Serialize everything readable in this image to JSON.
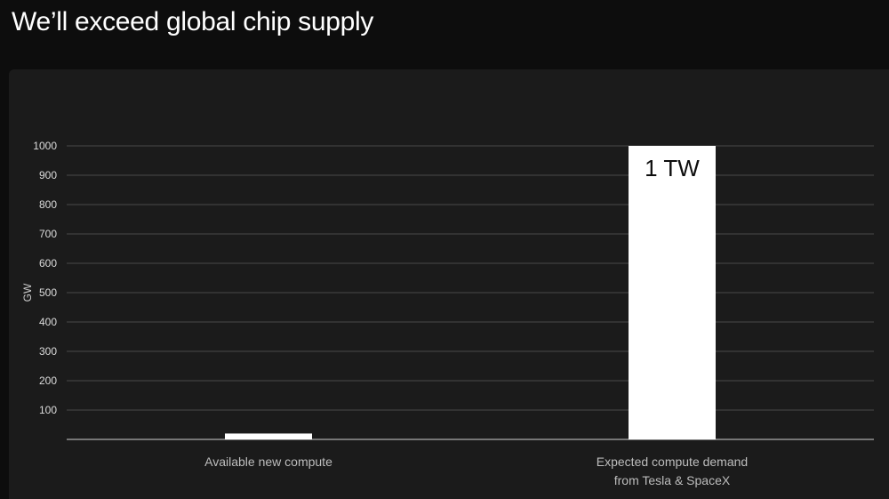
{
  "slide": {
    "title": "We’ll exceed global chip supply"
  },
  "chart_data": {
    "type": "bar",
    "title": "",
    "xlabel": "",
    "ylabel": "GW",
    "ylim": [
      0,
      1000
    ],
    "yticks": [
      100,
      200,
      300,
      400,
      500,
      600,
      700,
      800,
      900,
      1000
    ],
    "grid": true,
    "categories": [
      [
        "Available new compute"
      ],
      [
        "Expected compute demand",
        "from Tesla & SpaceX"
      ]
    ],
    "values": [
      20,
      1000
    ],
    "data_labels": [
      "",
      "1 TW"
    ],
    "colors": {
      "bar": "#ffffff",
      "grid": "#4a4a4a",
      "baseline": "#d0d0d0",
      "panel": "#1b1b1b",
      "background": "#0d0d0d"
    }
  }
}
